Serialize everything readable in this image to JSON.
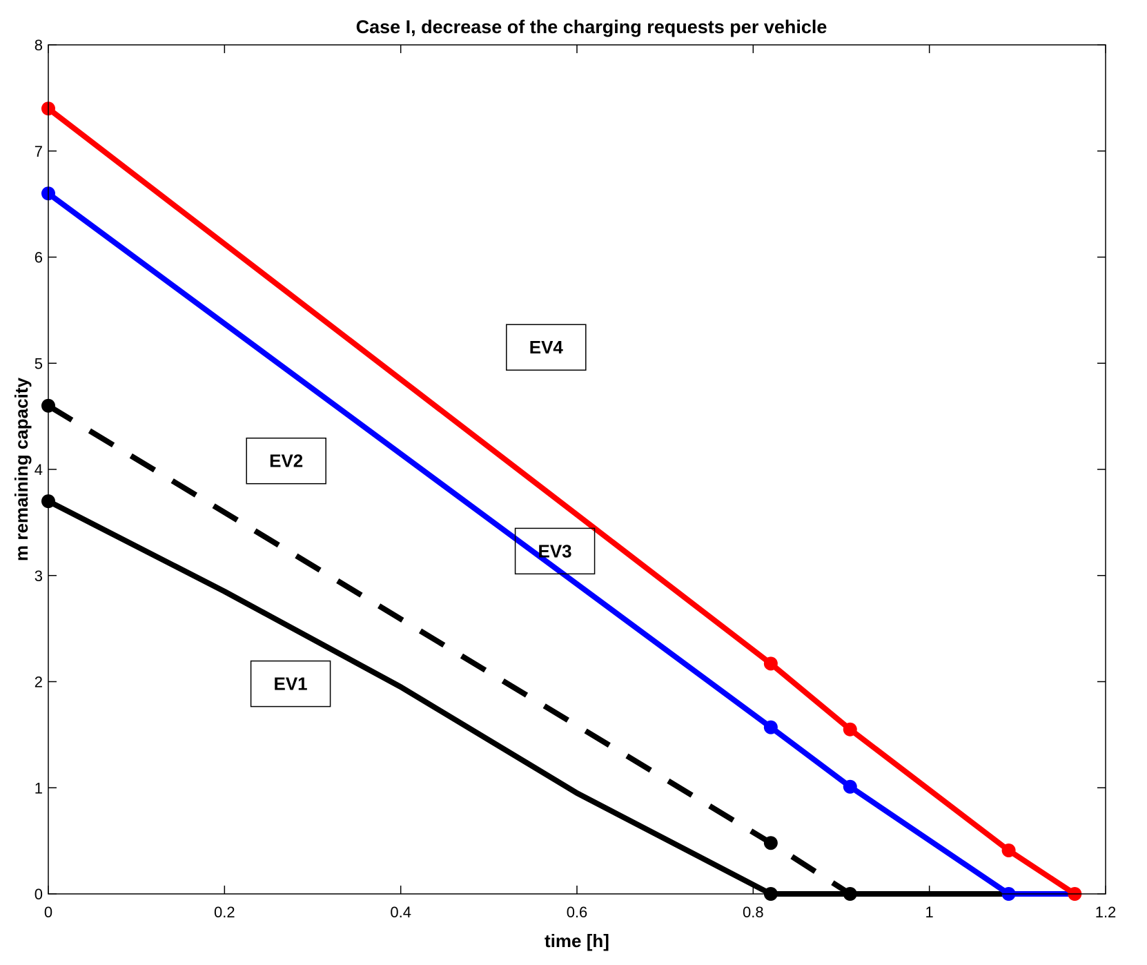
{
  "chart_data": {
    "type": "line",
    "title": "Case I, decrease of the charging requests per vehicle",
    "xlabel": "time [h]",
    "ylabel": "m remaining capacity",
    "xlim": [
      0,
      1.2
    ],
    "ylim": [
      0,
      8
    ],
    "xticks": [
      "0",
      "0.2",
      "0.4",
      "0.6",
      "0.8",
      "1",
      "1.2"
    ],
    "yticks": [
      "0",
      "1",
      "2",
      "3",
      "4",
      "5",
      "6",
      "7",
      "8"
    ],
    "grid": false,
    "series": [
      {
        "name": "EV1",
        "color": "#000000",
        "style": "solid",
        "x": [
          0,
          0.2,
          0.4,
          0.6,
          0.82,
          0.91,
          1.09,
          1.165
        ],
        "y": [
          3.7,
          2.85,
          1.95,
          0.95,
          0,
          0,
          0,
          0
        ],
        "markers": [
          [
            0,
            3.7
          ],
          [
            0.82,
            0
          ]
        ]
      },
      {
        "name": "EV2",
        "color": "#000000",
        "style": "dashed",
        "x": [
          0,
          0.82,
          0.91
        ],
        "y": [
          4.6,
          0.48,
          0
        ],
        "markers": [
          [
            0,
            4.6
          ],
          [
            0.82,
            0.48
          ],
          [
            0.91,
            0
          ]
        ]
      },
      {
        "name": "EV3",
        "color": "#0000ff",
        "style": "solid",
        "x": [
          0,
          0.82,
          0.91,
          1.09,
          1.165
        ],
        "y": [
          6.6,
          1.57,
          1.01,
          0,
          0
        ],
        "markers": [
          [
            0,
            6.6
          ],
          [
            0.82,
            1.57
          ],
          [
            0.91,
            1.01
          ],
          [
            1.09,
            0
          ]
        ]
      },
      {
        "name": "EV4",
        "color": "#ff0000",
        "style": "solid",
        "x": [
          0,
          0.82,
          0.91,
          1.09,
          1.165
        ],
        "y": [
          7.4,
          2.17,
          1.55,
          0.41,
          0
        ],
        "markers": [
          [
            0,
            7.4
          ],
          [
            0.82,
            2.17
          ],
          [
            0.91,
            1.55
          ],
          [
            1.09,
            0.41
          ],
          [
            1.165,
            0
          ]
        ]
      }
    ],
    "annotations": [
      {
        "text": "EV4",
        "x": 0.565,
        "y": 5.15
      },
      {
        "text": "EV2",
        "x": 0.27,
        "y": 4.08
      },
      {
        "text": "EV3",
        "x": 0.575,
        "y": 3.23
      },
      {
        "text": "EV1",
        "x": 0.275,
        "y": 1.98
      }
    ]
  }
}
